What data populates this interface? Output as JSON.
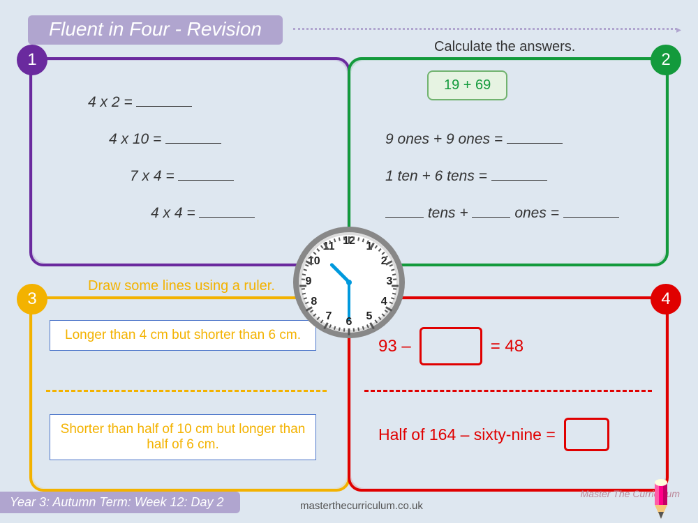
{
  "colors": {
    "c1": "#6a2a9e",
    "c2": "#139a3c",
    "c3": "#f3b200",
    "c4": "#e00000",
    "accent": "#b0a5cf",
    "bg": "#dee7f0",
    "clock_hand": "#0099dd"
  },
  "title": "Fluent in Four - Revision",
  "footer": "Year 3: Autumn Term: Week 12: Day 2",
  "url": "masterthecurriculum.co.uk",
  "brand": "Master The Curriculum",
  "clock": {
    "hour": 10,
    "minute": 30
  },
  "panels": {
    "p1": {
      "badge": "1",
      "lines": [
        "4 x 2 =",
        "4 x 10 =",
        "7 x 4 =",
        "4 x 4 ="
      ]
    },
    "p2": {
      "badge": "2",
      "title": "Calculate the answers.",
      "calc": "19 + 69",
      "lines": [
        "9 ones + 9 ones =",
        "1 ten + 6 tens ="
      ],
      "line3_parts": [
        "tens +",
        "ones ="
      ]
    },
    "p3": {
      "badge": "3",
      "title": "Draw some lines using a ruler.",
      "task1": "Longer than 4 cm but shorter than 6 cm.",
      "task2": "Shorter than half of 10 cm but longer than half of 6 cm."
    },
    "p4": {
      "badge": "4",
      "eq1_left": "93 –",
      "eq1_right": "= 48",
      "eq2": "Half of 164 – sixty-nine ="
    }
  }
}
